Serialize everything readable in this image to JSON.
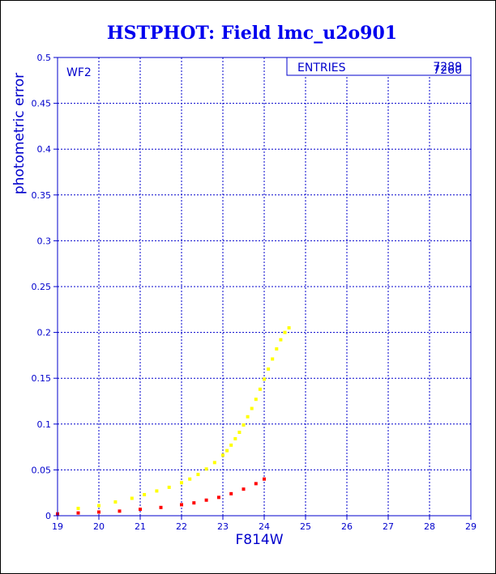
{
  "chart_data": {
    "type": "scatter",
    "title": "HSTPHOT: Field lmc_u2o901",
    "xlabel": "F814W",
    "ylabel": "photometric error",
    "panel_label": "WF2",
    "stats_box": {
      "label": "ENTRIES",
      "values": [
        "7289",
        "7260"
      ]
    },
    "xlim": [
      19,
      29
    ],
    "ylim": [
      0,
      0.5
    ],
    "xticks": [
      "19",
      "20",
      "21",
      "22",
      "23",
      "24",
      "25",
      "26",
      "27",
      "28",
      "29"
    ],
    "yticks": [
      "0",
      "0.05",
      "0.1",
      "0.15",
      "0.2",
      "0.25",
      "0.3",
      "0.35",
      "0.4",
      "0.45",
      "0.5"
    ],
    "grid": true,
    "series": [
      {
        "color": "#ffff00",
        "description_points_note": "",
        "x": [
          19.5,
          20.0,
          20.4,
          20.8,
          21.1,
          21.4,
          21.7,
          22.0,
          22.2,
          22.4,
          22.6,
          22.8,
          23.0,
          23.1,
          23.2,
          23.3,
          23.4,
          23.5,
          23.6,
          23.7,
          23.8,
          23.9,
          24.0,
          24.1,
          24.2,
          24.3,
          24.4,
          24.5,
          24.6
        ],
        "y": [
          0.008,
          0.011,
          0.015,
          0.019,
          0.023,
          0.027,
          0.031,
          0.036,
          0.04,
          0.045,
          0.051,
          0.058,
          0.066,
          0.071,
          0.077,
          0.084,
          0.091,
          0.099,
          0.108,
          0.117,
          0.127,
          0.138,
          0.149,
          0.16,
          0.171,
          0.182,
          0.192,
          0.2,
          0.205
        ]
      },
      {
        "color": "#ff0000",
        "x": [
          19.0,
          19.5,
          20.0,
          20.5,
          21.0,
          21.5,
          22.0,
          22.3,
          22.6,
          22.9,
          23.2,
          23.5,
          23.8,
          24.0
        ],
        "y": [
          0.002,
          0.003,
          0.004,
          0.005,
          0.007,
          0.009,
          0.012,
          0.014,
          0.017,
          0.02,
          0.024,
          0.029,
          0.035,
          0.04
        ]
      }
    ],
    "colors": {
      "axes": "#0000cc",
      "title": "#0000ee",
      "yellow": "#ffff00",
      "red": "#ff0000"
    }
  }
}
